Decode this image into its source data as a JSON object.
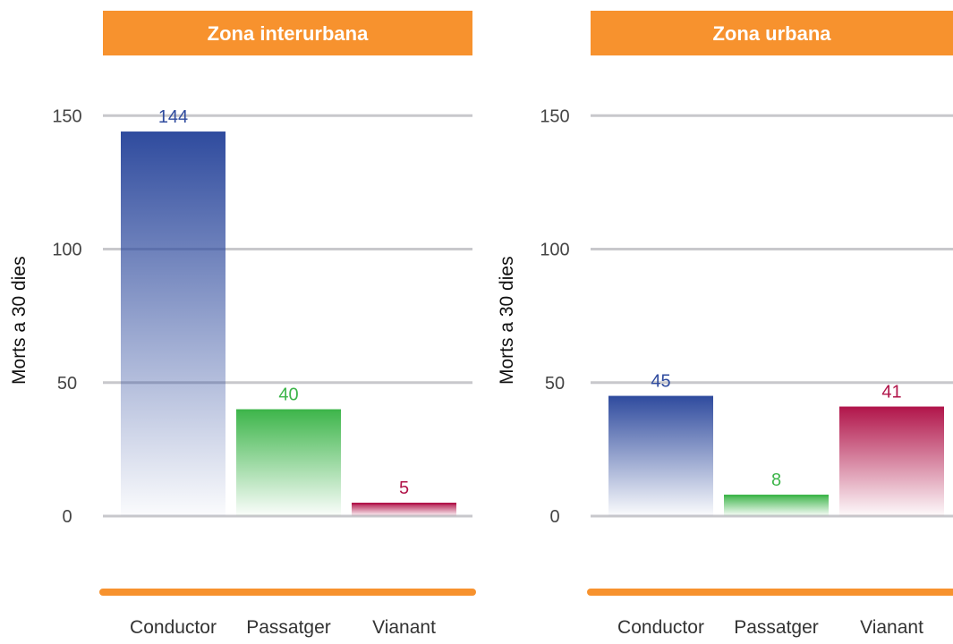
{
  "colors": {
    "header_bg": "#F7922E",
    "header_text": "#ffffff",
    "grid": "#c8c8cc",
    "axis_text": "#444444",
    "ylabel_text": "#111111",
    "category_text": "#333333",
    "conductor": "#2F4B9E",
    "passatger": "#3DB54A",
    "vianant": "#B1154A"
  },
  "chart_data": [
    {
      "type": "bar",
      "title": "Zona interurbana",
      "ylabel": "Morts a 30 dies",
      "xlabel": "",
      "categories": [
        "Conductor",
        "Passatger",
        "Vianant"
      ],
      "values": [
        144,
        40,
        5
      ],
      "value_labels": [
        "144",
        "40",
        "5"
      ],
      "bar_colors": [
        "conductor",
        "passatger",
        "vianant"
      ],
      "ylim": [
        0,
        160
      ],
      "yticks": [
        0,
        50,
        100,
        150
      ],
      "ytick_labels": [
        "0",
        "50",
        "100",
        "150"
      ],
      "grid": true
    },
    {
      "type": "bar",
      "title": "Zona urbana",
      "ylabel": "Morts a 30 dies",
      "xlabel": "",
      "categories": [
        "Conductor",
        "Passatger",
        "Vianant"
      ],
      "values": [
        45,
        8,
        41
      ],
      "value_labels": [
        "45",
        "8",
        "41"
      ],
      "bar_colors": [
        "conductor",
        "passatger",
        "vianant"
      ],
      "ylim": [
        0,
        160
      ],
      "yticks": [
        0,
        50,
        100,
        150
      ],
      "ytick_labels": [
        "0",
        "50",
        "100",
        "150"
      ],
      "grid": true
    }
  ]
}
